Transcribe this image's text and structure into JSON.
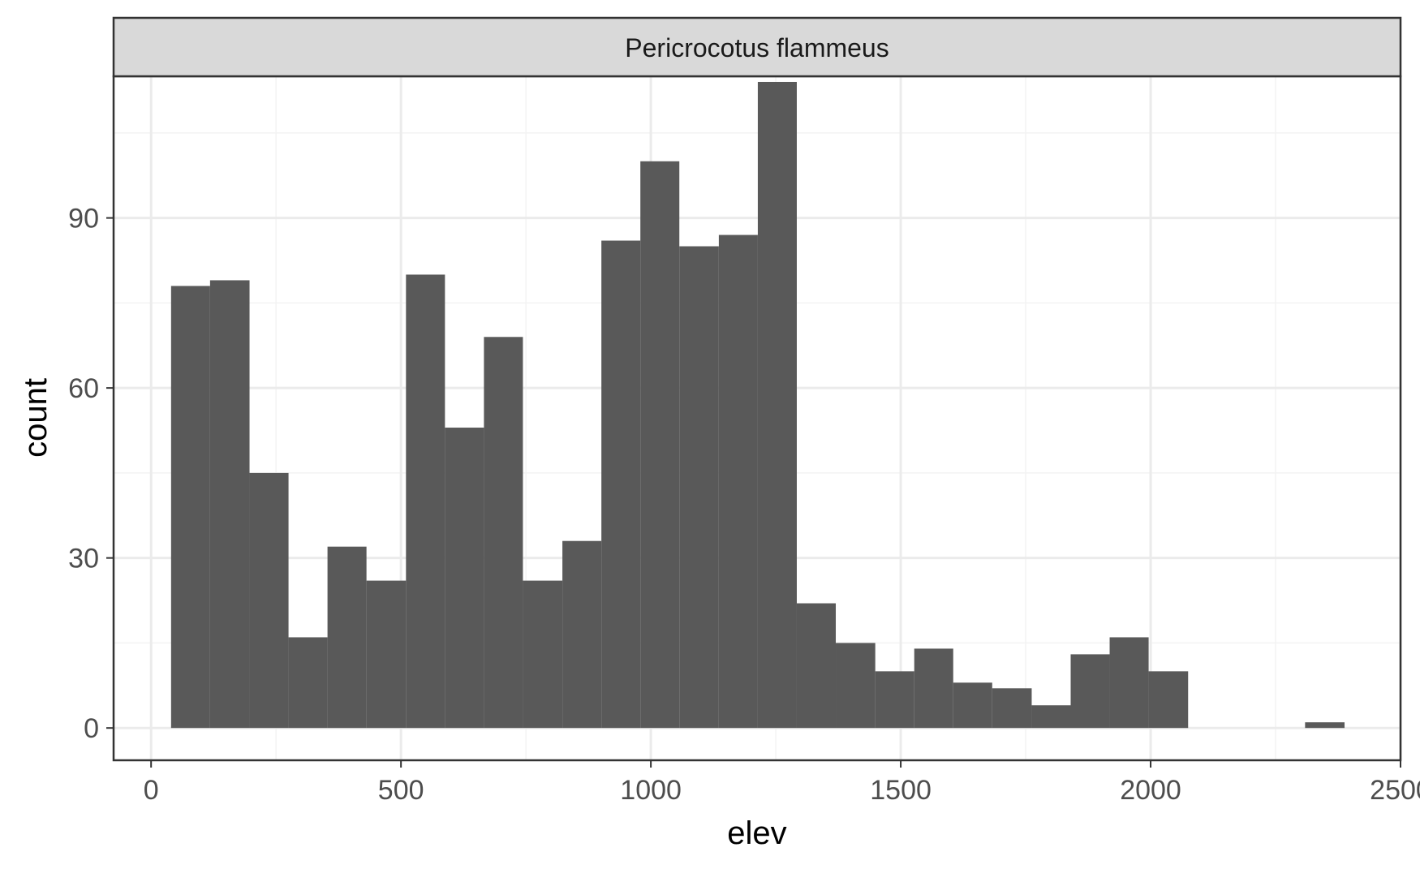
{
  "chart_data": {
    "type": "bar",
    "facet_label": "Pericrocotus flammeus",
    "xlabel": "elev",
    "ylabel": "count",
    "xlim": [
      -75,
      2500
    ],
    "ylim": [
      -5.7,
      115
    ],
    "x_ticks": [
      0,
      500,
      1000,
      1500,
      2000,
      2500
    ],
    "x_tick_labels": [
      "0",
      "500",
      "1000",
      "1500",
      "2000",
      "2500"
    ],
    "y_ticks": [
      0,
      30,
      60,
      90
    ],
    "y_tick_labels": [
      "0",
      "30",
      "60",
      "90"
    ],
    "grid": true,
    "bin_width": 78,
    "bins": [
      {
        "x0": 40,
        "x1": 118,
        "count": 78
      },
      {
        "x0": 118,
        "x1": 197,
        "count": 79
      },
      {
        "x0": 197,
        "x1": 275,
        "count": 45
      },
      {
        "x0": 275,
        "x1": 353,
        "count": 16
      },
      {
        "x0": 353,
        "x1": 431,
        "count": 32
      },
      {
        "x0": 431,
        "x1": 510,
        "count": 26
      },
      {
        "x0": 510,
        "x1": 588,
        "count": 80
      },
      {
        "x0": 588,
        "x1": 666,
        "count": 53
      },
      {
        "x0": 666,
        "x1": 744,
        "count": 69
      },
      {
        "x0": 744,
        "x1": 823,
        "count": 26
      },
      {
        "x0": 823,
        "x1": 901,
        "count": 33
      },
      {
        "x0": 901,
        "x1": 979,
        "count": 86
      },
      {
        "x0": 979,
        "x1": 1057,
        "count": 100
      },
      {
        "x0": 1057,
        "x1": 1136,
        "count": 85
      },
      {
        "x0": 1136,
        "x1": 1214,
        "count": 87
      },
      {
        "x0": 1214,
        "x1": 1292,
        "count": 114
      },
      {
        "x0": 1292,
        "x1": 1370,
        "count": 22
      },
      {
        "x0": 1370,
        "x1": 1449,
        "count": 15
      },
      {
        "x0": 1449,
        "x1": 1527,
        "count": 10
      },
      {
        "x0": 1527,
        "x1": 1605,
        "count": 14
      },
      {
        "x0": 1605,
        "x1": 1683,
        "count": 8
      },
      {
        "x0": 1683,
        "x1": 1762,
        "count": 7
      },
      {
        "x0": 1762,
        "x1": 1840,
        "count": 4
      },
      {
        "x0": 1840,
        "x1": 1918,
        "count": 13
      },
      {
        "x0": 1918,
        "x1": 1996,
        "count": 16
      },
      {
        "x0": 1996,
        "x1": 2075,
        "count": 10
      },
      {
        "x0": 2075,
        "x1": 2153,
        "count": 0
      },
      {
        "x0": 2153,
        "x1": 2231,
        "count": 0
      },
      {
        "x0": 2231,
        "x1": 2309,
        "count": 0
      },
      {
        "x0": 2309,
        "x1": 2388,
        "count": 1
      }
    ],
    "colors": {
      "bar": "#595959",
      "grid_major": "#ebebeb",
      "grid_minor": "#f3f3f3",
      "panel_border": "#333333",
      "strip_fill": "#d9d9d9"
    }
  }
}
